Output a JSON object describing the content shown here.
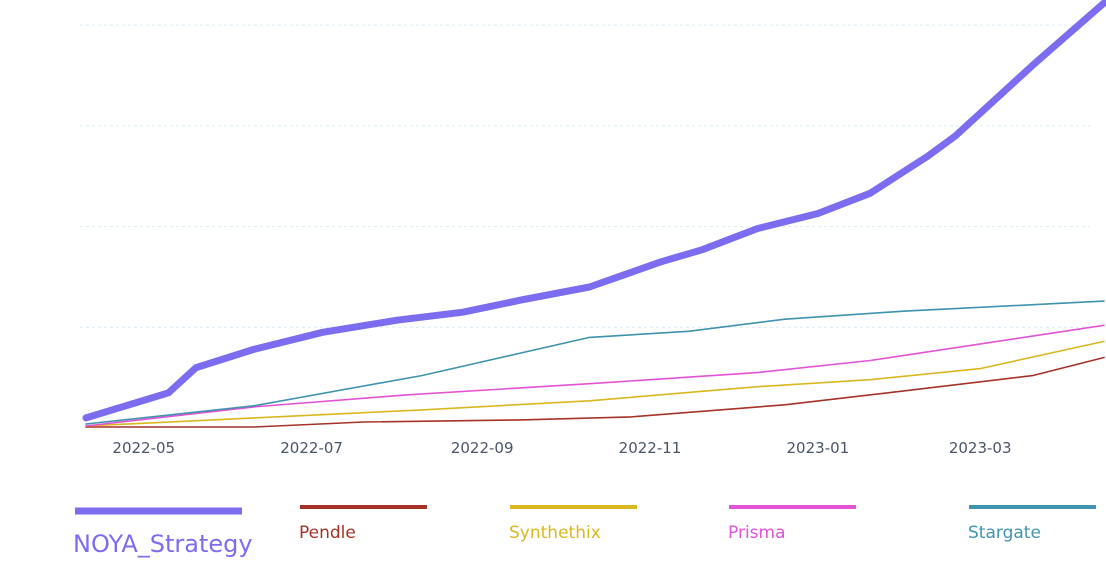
{
  "chart_data": {
    "type": "line",
    "title": "",
    "xlabel": "",
    "ylabel": "",
    "x_ticks": [
      "2022-05",
      "2022-07",
      "2022-09",
      "2022-11",
      "2023-01",
      "2023-03"
    ],
    "x_range": [
      "2022-04-10",
      "2023-04-15"
    ],
    "y_range": [
      0,
      4.2
    ],
    "y_gridlines": [
      1,
      2,
      3,
      4
    ],
    "grid": "horizontal dashed",
    "legend_position": "bottom",
    "series": [
      {
        "name": "NOYA_Strategy",
        "color": "#7b6cf0",
        "emphasis": true,
        "points": [
          [
            "2022-04-10",
            0.1
          ],
          [
            "2022-05-10",
            0.35
          ],
          [
            "2022-05-20",
            0.6
          ],
          [
            "2022-06-10",
            0.78
          ],
          [
            "2022-07-05",
            0.95
          ],
          [
            "2022-08-01",
            1.07
          ],
          [
            "2022-08-25",
            1.15
          ],
          [
            "2022-09-15",
            1.27
          ],
          [
            "2022-10-10",
            1.4
          ],
          [
            "2022-11-05",
            1.65
          ],
          [
            "2022-11-20",
            1.77
          ],
          [
            "2022-12-10",
            1.98
          ],
          [
            "2023-01-01",
            2.13
          ],
          [
            "2023-01-20",
            2.33
          ],
          [
            "2023-02-10",
            2.7
          ],
          [
            "2023-02-20",
            2.9
          ],
          [
            "2023-03-20",
            3.6
          ],
          [
            "2023-04-15",
            4.22
          ]
        ]
      },
      {
        "name": "Pendle",
        "color": "#a63228",
        "emphasis": false,
        "points": [
          [
            "2022-04-10",
            0.01
          ],
          [
            "2022-06-10",
            0.01
          ],
          [
            "2022-07-20",
            0.06
          ],
          [
            "2022-09-15",
            0.08
          ],
          [
            "2022-10-25",
            0.11
          ],
          [
            "2022-12-20",
            0.23
          ],
          [
            "2023-02-05",
            0.38
          ],
          [
            "2023-03-20",
            0.52
          ],
          [
            "2023-04-15",
            0.7
          ]
        ]
      },
      {
        "name": "Synthethix",
        "color": "#d9b81f",
        "emphasis": false,
        "points": [
          [
            "2022-04-10",
            0.02
          ],
          [
            "2022-06-10",
            0.1
          ],
          [
            "2022-08-10",
            0.18
          ],
          [
            "2022-10-10",
            0.27
          ],
          [
            "2022-12-10",
            0.41
          ],
          [
            "2023-01-20",
            0.48
          ],
          [
            "2023-03-01",
            0.59
          ],
          [
            "2023-04-15",
            0.86
          ]
        ]
      },
      {
        "name": "Prisma",
        "color": "#e452d6",
        "emphasis": false,
        "points": [
          [
            "2022-04-10",
            0.02
          ],
          [
            "2022-06-10",
            0.21
          ],
          [
            "2022-08-05",
            0.33
          ],
          [
            "2022-10-10",
            0.44
          ],
          [
            "2022-12-10",
            0.55
          ],
          [
            "2023-01-20",
            0.67
          ],
          [
            "2023-04-15",
            1.02
          ]
        ]
      },
      {
        "name": "Stargate",
        "color": "#3f93ae",
        "emphasis": false,
        "points": [
          [
            "2022-04-10",
            0.04
          ],
          [
            "2022-06-10",
            0.22
          ],
          [
            "2022-08-10",
            0.52
          ],
          [
            "2022-10-10",
            0.9
          ],
          [
            "2022-11-15",
            0.96
          ],
          [
            "2022-12-20",
            1.08
          ],
          [
            "2023-02-01",
            1.16
          ],
          [
            "2023-04-15",
            1.26
          ]
        ]
      }
    ]
  }
}
